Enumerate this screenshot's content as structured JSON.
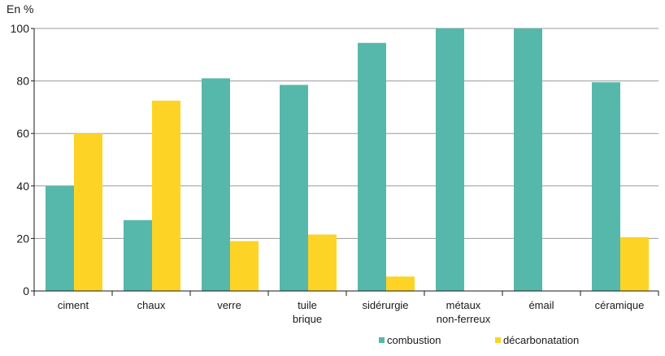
{
  "chart_data": {
    "type": "bar",
    "unit_label": "En %",
    "categories": [
      [
        "ciment"
      ],
      [
        "chaux"
      ],
      [
        "verre"
      ],
      [
        "tuile",
        "brique"
      ],
      [
        "sidérurgie"
      ],
      [
        "métaux",
        "non-ferreux"
      ],
      [
        "émail"
      ],
      [
        "céramique"
      ]
    ],
    "series": [
      {
        "name": "combustion",
        "color": "#56b8aa",
        "values": [
          40,
          27,
          81,
          78.5,
          94.5,
          100,
          100,
          79.5
        ]
      },
      {
        "name": "décarbonatation",
        "color": "#fdd425",
        "values": [
          60,
          72.5,
          19,
          21.5,
          5.5,
          0,
          0,
          20.5
        ]
      }
    ],
    "ylim": [
      0,
      100
    ],
    "yticks": [
      0,
      20,
      40,
      60,
      80,
      100
    ],
    "grid": true,
    "legend": "bottom-right"
  }
}
